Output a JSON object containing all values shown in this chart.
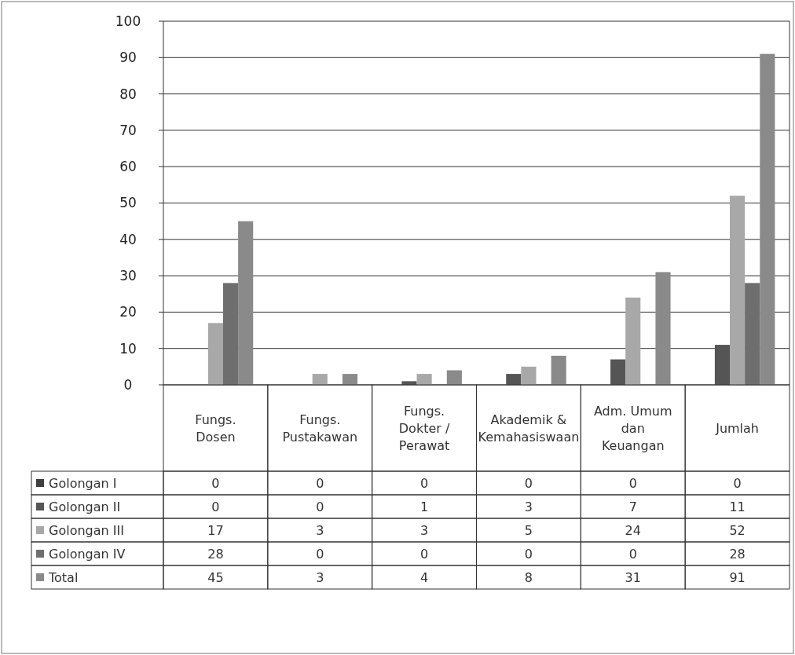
{
  "chart_data": {
    "type": "bar",
    "categories": [
      "Fungs. Dosen",
      "Fungs. Pustakawan",
      "Fungs. Dokter / Perawat",
      "Akademik & Kemahasiswaan",
      "Adm. Umum dan Keuangan",
      "Jumlah"
    ],
    "series": [
      {
        "name": "Golongan I",
        "color": "#3f3f3f",
        "values": [
          0,
          0,
          0,
          0,
          0,
          0
        ]
      },
      {
        "name": "Golongan II",
        "color": "#555555",
        "values": [
          0,
          0,
          1,
          3,
          7,
          11
        ]
      },
      {
        "name": "Golongan III",
        "color": "#a8a8a8",
        "values": [
          17,
          3,
          3,
          5,
          24,
          52
        ]
      },
      {
        "name": "Golongan IV",
        "color": "#6e6e6e",
        "values": [
          28,
          0,
          0,
          0,
          0,
          28
        ]
      },
      {
        "name": "Total",
        "color": "#8a8a8a",
        "values": [
          45,
          3,
          4,
          8,
          31,
          91
        ]
      }
    ],
    "ylim": [
      0,
      100
    ],
    "yticks": [
      0,
      10,
      20,
      30,
      40,
      50,
      60,
      70,
      80,
      90,
      100
    ],
    "grid": "y",
    "data_labels": true,
    "legend": "bottom"
  }
}
